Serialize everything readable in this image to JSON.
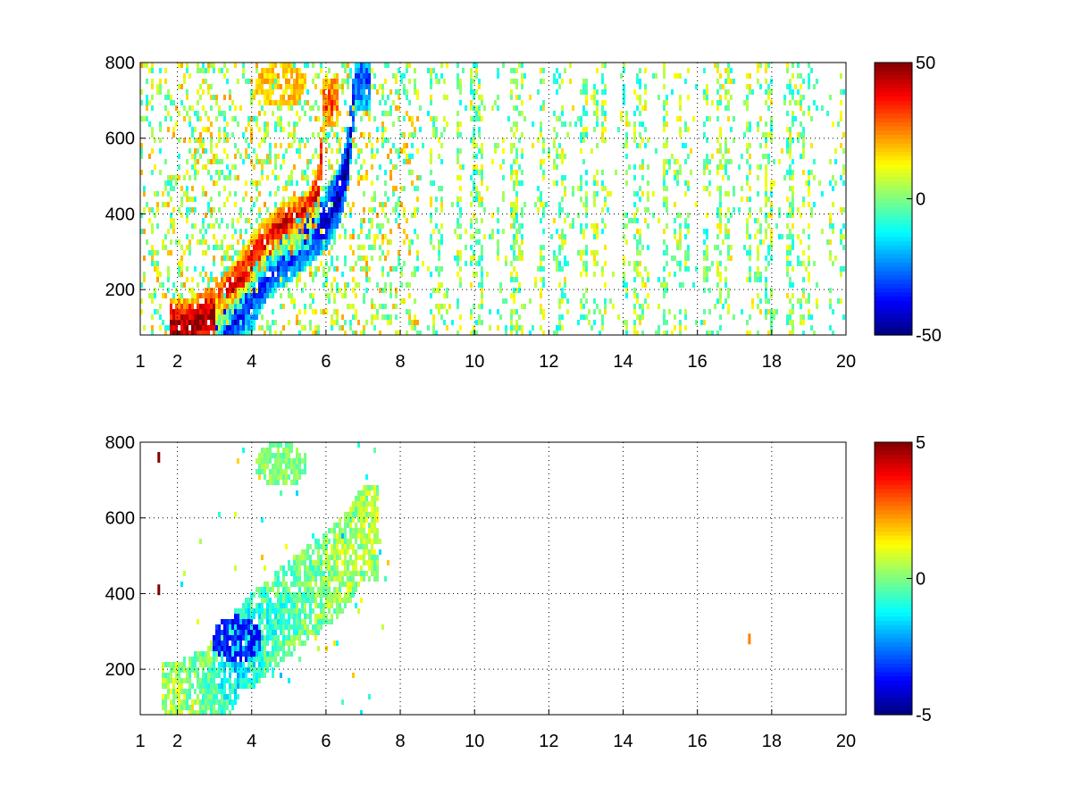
{
  "chart_data": [
    {
      "type": "heatmap",
      "title": "",
      "xlabel": "",
      "ylabel": "",
      "xlim": [
        1,
        20
      ],
      "ylim": [
        80,
        800
      ],
      "xticks": [
        1,
        2,
        4,
        6,
        8,
        10,
        12,
        14,
        16,
        18,
        20
      ],
      "yticks": [
        200,
        400,
        600,
        800
      ],
      "grid": true,
      "colormap": "jet",
      "colorbar": {
        "min": -50,
        "max": 50,
        "ticks": [
          50,
          0,
          -50
        ]
      },
      "nan_color": "#ffffff",
      "features": [
        {
          "kind": "ridge",
          "sign": "positive",
          "points": [
            [
              2.2,
              100,
              45
            ],
            [
              3.0,
              130,
              50
            ],
            [
              3.6,
              210,
              40
            ],
            [
              4.2,
              300,
              35
            ],
            [
              4.8,
              350,
              45
            ],
            [
              5.5,
              380,
              45
            ],
            [
              5.8,
              450,
              40
            ],
            [
              5.9,
              600,
              35
            ],
            [
              5.95,
              700,
              30
            ]
          ]
        },
        {
          "kind": "ridge",
          "sign": "negative",
          "points": [
            [
              3.4,
              110,
              -40
            ],
            [
              4.0,
              170,
              -30
            ],
            [
              4.5,
              260,
              -35
            ],
            [
              5.2,
              310,
              -35
            ],
            [
              6.0,
              380,
              -40
            ],
            [
              6.4,
              460,
              -45
            ],
            [
              6.6,
              550,
              -45
            ],
            [
              6.7,
              650,
              -40
            ],
            [
              6.8,
              750,
              -30
            ]
          ]
        },
        {
          "kind": "blob",
          "sign": "positive",
          "x": 4.8,
          "y": 740,
          "value": 18
        }
      ]
    },
    {
      "type": "heatmap",
      "title": "",
      "xlabel": "",
      "ylabel": "",
      "xlim": [
        1,
        20
      ],
      "ylim": [
        80,
        800
      ],
      "xticks": [
        1,
        2,
        4,
        6,
        8,
        10,
        12,
        14,
        16,
        18,
        20
      ],
      "yticks": [
        200,
        400,
        600,
        800
      ],
      "grid": true,
      "colormap": "jet",
      "colorbar": {
        "min": -5,
        "max": 5,
        "ticks": [
          5,
          0,
          -5
        ]
      },
      "nan_color": "#ffffff",
      "features": [
        {
          "kind": "band",
          "sign": "mixed",
          "points": [
            [
              2.0,
              90,
              0.5
            ],
            [
              3.0,
              150,
              -0.5
            ],
            [
              3.7,
              250,
              -2.0
            ],
            [
              4.3,
              300,
              -1.0
            ],
            [
              5.0,
              360,
              -0.5
            ],
            [
              5.8,
              420,
              0.0
            ],
            [
              6.5,
              480,
              0.5
            ],
            [
              7.0,
              560,
              0.5
            ]
          ]
        },
        {
          "kind": "blob",
          "sign": "negative",
          "x": 3.6,
          "y": 280,
          "value": -3.5
        },
        {
          "kind": "blob",
          "sign": "positive",
          "x": 4.8,
          "y": 740,
          "value": 0.0
        },
        {
          "kind": "spot",
          "x": 1.5,
          "y": 760,
          "value": 5
        },
        {
          "kind": "spot",
          "x": 1.5,
          "y": 410,
          "value": 5
        },
        {
          "kind": "spot",
          "x": 17.4,
          "y": 280,
          "value": 2.5
        }
      ]
    }
  ]
}
